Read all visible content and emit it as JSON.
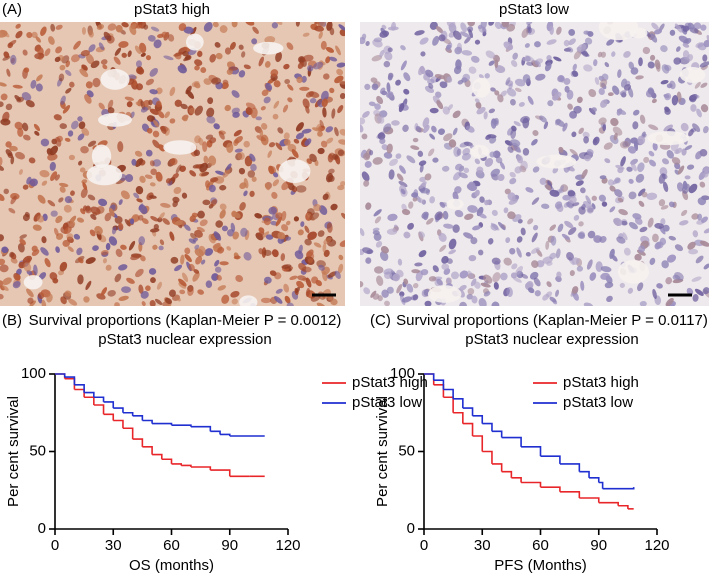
{
  "figure_a": {
    "panel_label": "(A)",
    "titles": [
      "pStat3 high",
      "pStat3 low"
    ]
  },
  "chart_data": [
    {
      "type": "step",
      "panel_label": "(B)",
      "title": "Survival proportions (Kaplan-Meier P = 0.0012)",
      "subtitle": "pStat3 nuclear expression",
      "x_label": "OS (months)",
      "y_label": "Per cent survival",
      "xlim": [
        0,
        120
      ],
      "xticks": [
        0,
        30,
        60,
        90,
        120
      ],
      "ylim": [
        0,
        100
      ],
      "yticks": [
        0,
        50,
        100
      ],
      "legend": "upper right",
      "series": [
        {
          "name": "pStat3 high",
          "color": "#e8262a",
          "x": [
            0,
            5,
            10,
            15,
            20,
            25,
            30,
            35,
            40,
            45,
            50,
            55,
            60,
            65,
            70,
            80,
            90,
            100,
            108
          ],
          "values": [
            100,
            97,
            90,
            85,
            80,
            74,
            70,
            65,
            58,
            53,
            48,
            45,
            42,
            41,
            40,
            38,
            34,
            34,
            34
          ]
        },
        {
          "name": "pStat3 low",
          "color": "#1f2fd0",
          "x": [
            0,
            5,
            10,
            15,
            20,
            25,
            30,
            35,
            40,
            45,
            50,
            60,
            70,
            80,
            85,
            90,
            108
          ],
          "values": [
            100,
            98,
            93,
            88,
            85,
            82,
            78,
            75,
            73,
            70,
            68,
            67,
            66,
            63,
            61,
            60,
            60
          ]
        }
      ]
    },
    {
      "type": "step",
      "panel_label": "(C)",
      "title": "Survival proportions (Kaplan-Meier P = 0.0117)",
      "subtitle": "pStat3 nuclear expression",
      "x_label": "PFS (Months)",
      "y_label": "Per cent survival",
      "xlim": [
        0,
        120
      ],
      "xticks": [
        0,
        30,
        60,
        90,
        120
      ],
      "ylim": [
        0,
        100
      ],
      "yticks": [
        0,
        50,
        100
      ],
      "legend": "upper right",
      "series": [
        {
          "name": "pStat3 high",
          "color": "#e8262a",
          "x": [
            0,
            5,
            10,
            15,
            20,
            25,
            30,
            35,
            40,
            45,
            50,
            60,
            70,
            80,
            90,
            100,
            105,
            108
          ],
          "values": [
            100,
            93,
            85,
            75,
            68,
            60,
            50,
            42,
            37,
            33,
            30,
            27,
            24,
            20,
            17,
            15,
            13,
            13
          ]
        },
        {
          "name": "pStat3 low",
          "color": "#1f2fd0",
          "x": [
            0,
            5,
            10,
            15,
            20,
            25,
            30,
            35,
            40,
            50,
            60,
            70,
            80,
            85,
            90,
            92,
            108
          ],
          "values": [
            100,
            96,
            90,
            84,
            78,
            73,
            68,
            63,
            59,
            53,
            47,
            42,
            37,
            33,
            30,
            26,
            27
          ]
        }
      ]
    }
  ]
}
